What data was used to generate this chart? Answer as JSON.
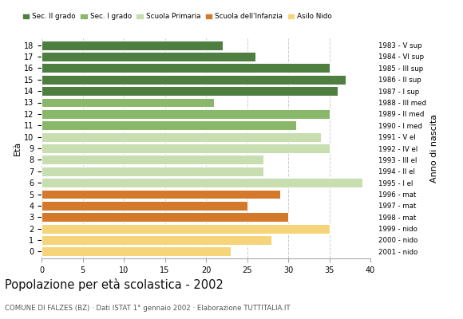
{
  "ages": [
    0,
    1,
    2,
    3,
    4,
    5,
    6,
    7,
    8,
    9,
    10,
    11,
    12,
    13,
    14,
    15,
    16,
    17,
    18
  ],
  "values": [
    23,
    28,
    35,
    30,
    25,
    29,
    39,
    27,
    27,
    35,
    34,
    31,
    35,
    21,
    36,
    37,
    35,
    26,
    22
  ],
  "right_labels": [
    "2001 - nido",
    "2000 - nido",
    "1999 - nido",
    "1998 - mat",
    "1997 - mat",
    "1996 - mat",
    "1995 - I el",
    "1994 - II el",
    "1993 - III el",
    "1992 - IV el",
    "1991 - V el",
    "1990 - I med",
    "1989 - II med",
    "1988 - III med",
    "1987 - I sup",
    "1986 - II sup",
    "1985 - III sup",
    "1984 - VI sup",
    "1983 - V sup"
  ],
  "bar_colors": [
    "#f5d47a",
    "#f5d47a",
    "#f5d47a",
    "#d4782a",
    "#d4782a",
    "#d4782a",
    "#c8ddb0",
    "#c8ddb0",
    "#c8ddb0",
    "#c8ddb0",
    "#c8ddb0",
    "#8ab86a",
    "#8ab86a",
    "#8ab86a",
    "#4e7e40",
    "#4e7e40",
    "#4e7e40",
    "#4e7e40",
    "#4e7e40"
  ],
  "legend_labels": [
    "Sec. II grado",
    "Sec. I grado",
    "Scuola Primaria",
    "Scuola dell'Infanzia",
    "Asilo Nido"
  ],
  "legend_colors": [
    "#4e7e40",
    "#8ab86a",
    "#c8ddb0",
    "#d4782a",
    "#f5d47a"
  ],
  "xlabel_ticks": [
    0,
    5,
    10,
    15,
    20,
    25,
    30,
    35,
    40
  ],
  "xlim": [
    0,
    40
  ],
  "title": "Popolazione per età scolastica - 2002",
  "subtitle": "COMUNE DI FALZES (BZ) · Dati ISTAT 1° gennaio 2002 · Elaborazione TUTTITALIA.IT",
  "ylabel": "Età",
  "right_ylabel": "Anno di nascita",
  "background_color": "#ffffff",
  "grid_color": "#cccccc"
}
